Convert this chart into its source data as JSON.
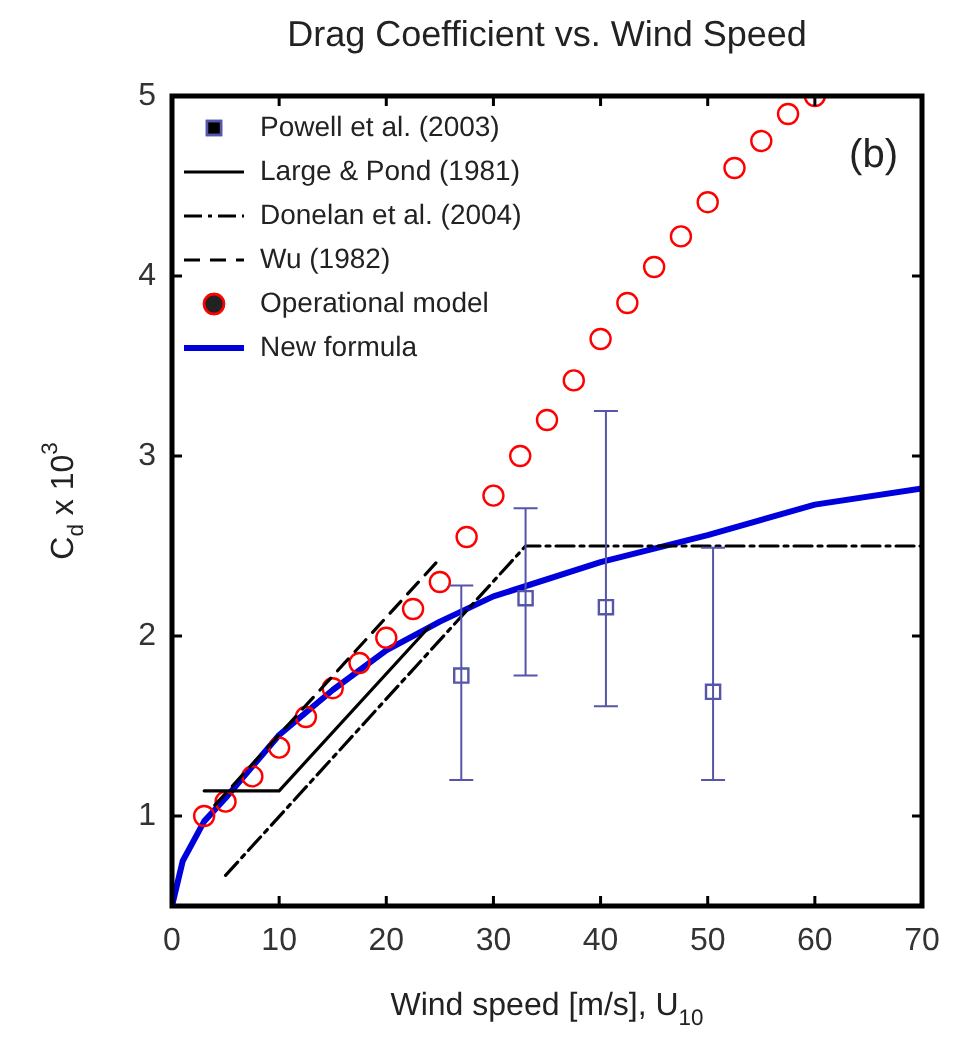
{
  "chart_data": {
    "type": "scatter",
    "title": "Drag Coefficient vs. Wind Speed",
    "xlabel": "Wind speed [m/s], U$_{10}$",
    "ylabel": "C$_{d}$ x 10$^{3}$",
    "annotations": [
      "(b)"
    ],
    "xlim": [
      0,
      70
    ],
    "xticks": [
      0,
      10,
      20,
      30,
      40,
      50,
      60,
      70
    ],
    "ylim": [
      0.5,
      5
    ],
    "yticks": [
      {
        "value": 0.5,
        "label": null
      },
      1,
      2,
      3,
      4,
      5
    ],
    "grid": false,
    "legend": "top left",
    "series": [
      {
        "name": "Powell et al. (2003)",
        "type": "scatter",
        "marker": "square",
        "color": "#5555aa",
        "x": [
          27,
          33,
          40.5,
          50.5
        ],
        "values": [
          1.78,
          2.21,
          2.16,
          1.69
        ],
        "errors": [
          [
            1.2,
            2.28
          ],
          [
            1.78,
            2.71
          ],
          [
            1.61,
            3.25
          ],
          [
            1.2,
            2.49
          ]
        ]
      },
      {
        "name": "Large & Pond (1981)",
        "type": "line",
        "marker": "none",
        "line_style": "solid",
        "color": "#000000",
        "x": [
          3,
          10,
          24
        ],
        "values": [
          1.14,
          1.14,
          2.05
        ]
      },
      {
        "name": "Donelan et al. (2004)",
        "type": "line",
        "marker": "none",
        "line_style": "dashdot",
        "color": "#000000",
        "x": [
          5,
          33,
          70
        ],
        "values": [
          0.67,
          2.5,
          2.5
        ]
      },
      {
        "name": "Wu (1982)",
        "type": "line",
        "marker": "none",
        "line_style": "dashed",
        "color": "#000000",
        "x": [
          4,
          25
        ],
        "values": [
          1.06,
          2.43
        ]
      },
      {
        "name": "Operational model",
        "type": "scatter",
        "marker": "circle",
        "color": "#ff0000",
        "x": [
          3,
          5,
          7.5,
          10,
          12.5,
          15,
          17.5,
          20,
          22.5,
          25,
          27.5,
          30,
          32.5,
          35,
          37.5,
          40,
          42.5,
          45,
          47.5,
          50,
          52.5,
          55,
          57.5,
          60
        ],
        "values": [
          1.0,
          1.08,
          1.22,
          1.38,
          1.55,
          1.71,
          1.85,
          1.99,
          2.15,
          2.3,
          2.55,
          2.78,
          3.0,
          3.2,
          3.42,
          3.65,
          3.85,
          4.05,
          4.22,
          4.41,
          4.6,
          4.75,
          4.9,
          5.0
        ]
      },
      {
        "name": "New formula",
        "type": "line",
        "marker": "none",
        "line_style": "solid",
        "color": "#0000dd",
        "x": [
          0,
          1,
          3,
          5,
          10,
          15,
          20,
          25,
          30,
          40,
          50,
          60,
          70
        ],
        "values": [
          0.5,
          0.75,
          0.97,
          1.1,
          1.45,
          1.7,
          1.92,
          2.08,
          2.22,
          2.41,
          2.56,
          2.73,
          2.82
        ]
      }
    ]
  }
}
